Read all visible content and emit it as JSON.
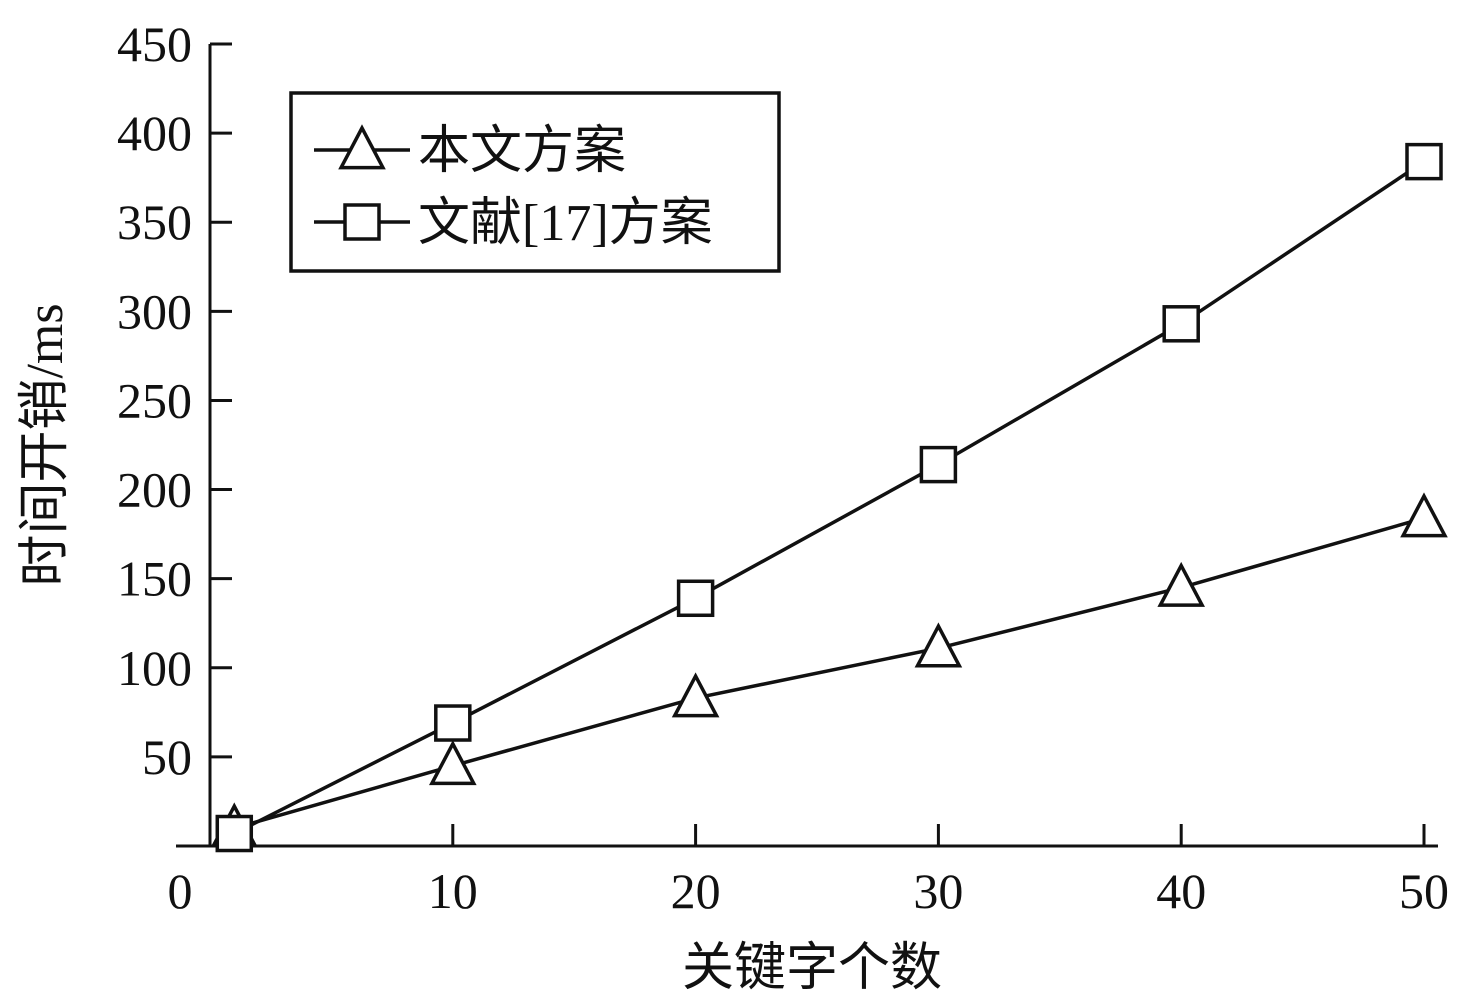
{
  "chart_data": {
    "type": "line",
    "title": "",
    "xlabel": "关键字个数",
    "ylabel": "时间开销/ms",
    "xlim": [
      0,
      50
    ],
    "ylim": [
      0,
      450
    ],
    "xticks": [
      0,
      10,
      20,
      30,
      40,
      50
    ],
    "yticks": [
      50,
      100,
      150,
      200,
      250,
      300,
      350,
      400,
      450
    ],
    "grid": false,
    "legend_position": "top-left",
    "series": [
      {
        "name": "本文方案",
        "marker": "triangle",
        "x": [
          1,
          10,
          20,
          30,
          40,
          50
        ],
        "values": [
          10,
          45,
          83,
          111,
          145,
          184
        ]
      },
      {
        "name": "文献[17]方案",
        "marker": "square",
        "x": [
          1,
          10,
          20,
          30,
          40,
          50
        ],
        "values": [
          7,
          69,
          139,
          214,
          293,
          384
        ]
      }
    ],
    "colors": {
      "line": "#111111",
      "axis": "#111111",
      "background": "#ffffff"
    }
  }
}
